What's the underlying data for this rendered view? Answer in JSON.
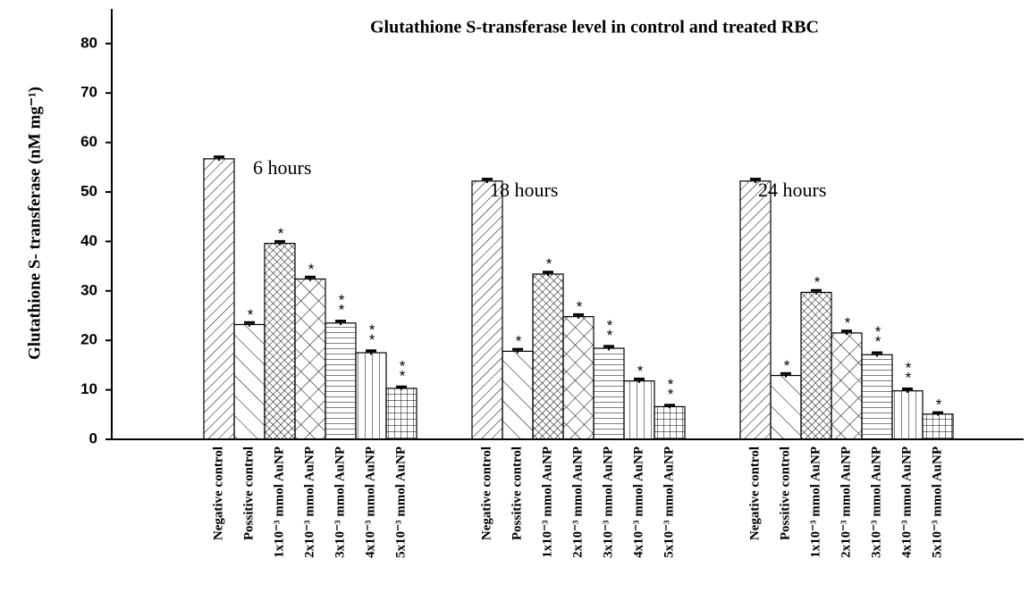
{
  "chart_data": {
    "type": "bar",
    "title": "Glutathione S-transferase level in control and treated RBC",
    "y_label": "Glutathione S- transferase (nM mg⁻¹)",
    "categories": [
      "Negative control",
      "Possitive control",
      "1x10⁻³ mmol AuNP",
      "2x10⁻³ mmol AuNP",
      "3x10⁻³ mmol AuNP",
      "4x10⁻³ mmol AuNP",
      "5x10⁻³ mmol AuNP"
    ],
    "patterns": [
      "dense-diagonal",
      "sparse-backslash",
      "dense-cross",
      "sparse-cross",
      "horizontal",
      "vertical",
      "grid"
    ],
    "color": "#000000",
    "series": [
      {
        "name": "6 hours",
        "values": [
          56.7,
          23.2,
          39.6,
          32.4,
          23.5,
          17.5,
          10.3
        ],
        "errors": [
          0.4,
          0.4,
          0.4,
          0.4,
          0.4,
          0.4,
          0.3
        ],
        "markers": [
          null,
          "*",
          "*",
          "*",
          "**",
          "**",
          "**"
        ]
      },
      {
        "name": "18 hours",
        "values": [
          52.2,
          17.8,
          33.4,
          24.8,
          18.4,
          11.8,
          6.6
        ],
        "errors": [
          0.4,
          0.4,
          0.4,
          0.4,
          0.4,
          0.4,
          0.3
        ],
        "markers": [
          null,
          "*",
          "*",
          "*",
          "**",
          "*",
          "**"
        ]
      },
      {
        "name": "24 hours",
        "values": [
          52.2,
          12.9,
          29.7,
          21.5,
          17.1,
          9.8,
          5.1
        ],
        "errors": [
          0.4,
          0.4,
          0.4,
          0.4,
          0.4,
          0.4,
          0.3
        ],
        "markers": [
          null,
          "*",
          "*",
          "*",
          "**",
          "**",
          "*"
        ]
      }
    ],
    "ylim": [
      0,
      87
    ],
    "yticks": [
      0,
      10,
      20,
      30,
      40,
      50,
      60,
      70,
      80
    ]
  }
}
